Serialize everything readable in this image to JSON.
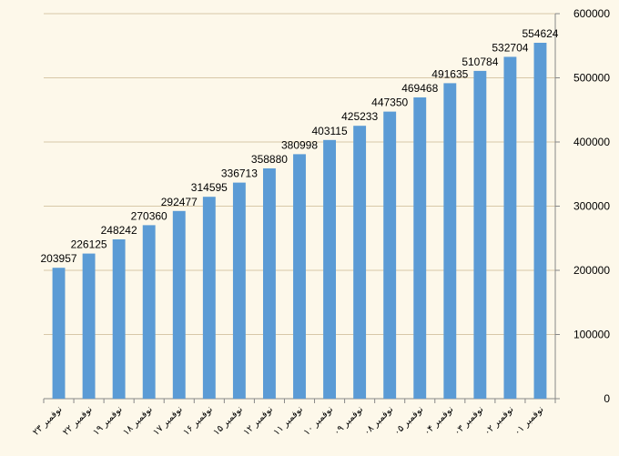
{
  "chart_data": {
    "type": "bar",
    "title": "",
    "xlabel": "",
    "ylabel": "",
    "ylim": [
      0,
      600000
    ],
    "yticks": [
      0,
      100000,
      200000,
      300000,
      400000,
      500000,
      600000
    ],
    "y_axis_side": "right",
    "grid": true,
    "bar_color": "#5b9bd5",
    "grid_color": "#d8c8a8",
    "categories": [
      "۲۳ نوفمبر",
      "۲۲ نوفمبر",
      "۱۹ نوفمبر",
      "۱۸ نوفمبر",
      "۱۷ نوفمبر",
      "۱۶ نوفمبر",
      "۱۵ نوفمبر",
      "۱۲ نوفمبر",
      "۱۱ نوفمبر",
      "۱۰ نوفمبر",
      "۰۹ نوفمبر",
      "۰۸ نوفمبر",
      "۰۵ نوفمبر",
      "۰۴ نوفمبر",
      "۰۳ نوفمبر",
      "۰۲ نوفمبر",
      "۰۱ نوفمبر"
    ],
    "values": [
      203957,
      226125,
      248242,
      270360,
      292477,
      314595,
      336713,
      358880,
      380998,
      403115,
      425233,
      447350,
      469468,
      491635,
      510784,
      532704,
      554624
    ]
  }
}
